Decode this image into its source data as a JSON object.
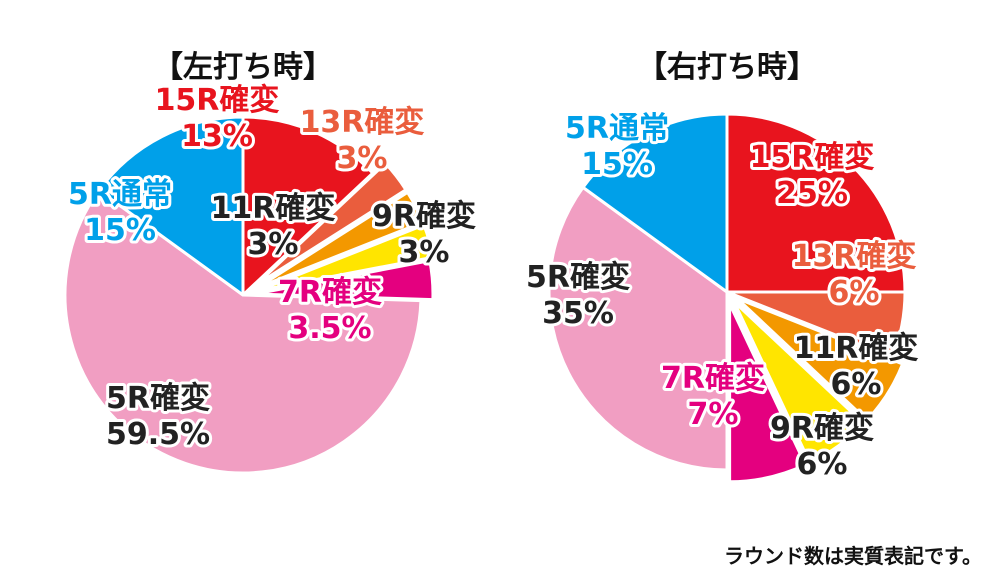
{
  "chart_data": [
    {
      "type": "pie",
      "title": "【左打ち時】",
      "slices": [
        {
          "label": "15R確変",
          "value": 13,
          "value_label": "13%",
          "color": "#e8141e",
          "text_color": "#e8141e"
        },
        {
          "label": "13R確変",
          "value": 3,
          "value_label": "3%",
          "color": "#ea5d3d",
          "text_color": "#ea5d3d"
        },
        {
          "label": "11R確変",
          "value": 3,
          "value_label": "3%",
          "color": "#f39800",
          "text_color": "#222222"
        },
        {
          "label": "9R確変",
          "value": 3,
          "value_label": "3%",
          "color": "#ffe500",
          "text_color": "#222222"
        },
        {
          "label": "7R確変",
          "value": 3.5,
          "value_label": "3.5%",
          "color": "#e4007f",
          "text_color": "#e4007f"
        },
        {
          "label": "5R確変",
          "value": 59.5,
          "value_label": "59.5%",
          "color": "#f19ec2",
          "text_color": "#222222"
        },
        {
          "label": "5R通常",
          "value": 15,
          "value_label": "15%",
          "color": "#00a0e9",
          "text_color": "#00a0e9"
        }
      ]
    },
    {
      "type": "pie",
      "title": "【右打ち時】",
      "slices": [
        {
          "label": "15R確変",
          "value": 25,
          "value_label": "25%",
          "color": "#e8141e",
          "text_color": "#e8141e"
        },
        {
          "label": "13R確変",
          "value": 6,
          "value_label": "6%",
          "color": "#ea5d3d",
          "text_color": "#ea5d3d"
        },
        {
          "label": "11R確変",
          "value": 6,
          "value_label": "6%",
          "color": "#f39800",
          "text_color": "#222222"
        },
        {
          "label": "9R確変",
          "value": 6,
          "value_label": "6%",
          "color": "#ffe500",
          "text_color": "#222222"
        },
        {
          "label": "7R確変",
          "value": 7,
          "value_label": "7%",
          "color": "#e4007f",
          "text_color": "#e4007f"
        },
        {
          "label": "5R確変",
          "value": 35,
          "value_label": "35%",
          "color": "#f19ec2",
          "text_color": "#222222"
        },
        {
          "label": "5R通常",
          "value": 15,
          "value_label": "15%",
          "color": "#00a0e9",
          "text_color": "#00a0e9"
        }
      ]
    }
  ],
  "footnote": "ラウンド数は実質表記です。"
}
